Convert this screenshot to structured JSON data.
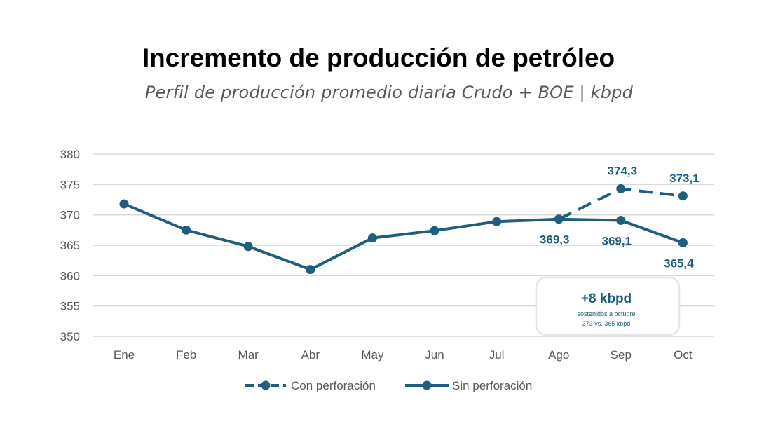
{
  "title": "Incremento de producción de petróleo",
  "subtitle": "Perfil de producción promedio diaria Crudo + BOE | kbpd",
  "colors": {
    "series": "#1d5f7d",
    "grid": "#d9d9d9",
    "axis_text": "#595959",
    "label_text": "#1d5f7d",
    "callout_border": "#e6e6e6",
    "callout_title": "#1d5f7d",
    "callout_text": "#1d5f7d"
  },
  "chart_data": {
    "type": "line",
    "categories": [
      "Ene",
      "Feb",
      "Mar",
      "Abr",
      "May",
      "Jun",
      "Jul",
      "Ago",
      "Sep",
      "Oct"
    ],
    "ylim": [
      350,
      380
    ],
    "yticks": [
      380,
      375,
      370,
      365,
      360,
      355,
      350
    ],
    "grid": true,
    "legend_position": "bottom",
    "series": [
      {
        "name": "Con perforación",
        "style": "dashed",
        "values": [
          null,
          null,
          null,
          null,
          null,
          null,
          null,
          369.3,
          374.3,
          373.1
        ],
        "labels": [
          null,
          null,
          null,
          null,
          null,
          null,
          null,
          null,
          "374,3",
          "373,1"
        ]
      },
      {
        "name": "Sin perforación",
        "style": "solid",
        "values": [
          371.8,
          367.5,
          364.8,
          361.0,
          366.2,
          367.4,
          368.9,
          369.3,
          369.1,
          365.4
        ],
        "labels": [
          null,
          null,
          null,
          null,
          null,
          null,
          null,
          "369,3",
          "369,1",
          "365,4"
        ]
      }
    ],
    "callout": {
      "headline": "+8 kbpd",
      "line1": "sostenidos a octubre",
      "line2": "373 vs. 365 kbpd"
    }
  }
}
